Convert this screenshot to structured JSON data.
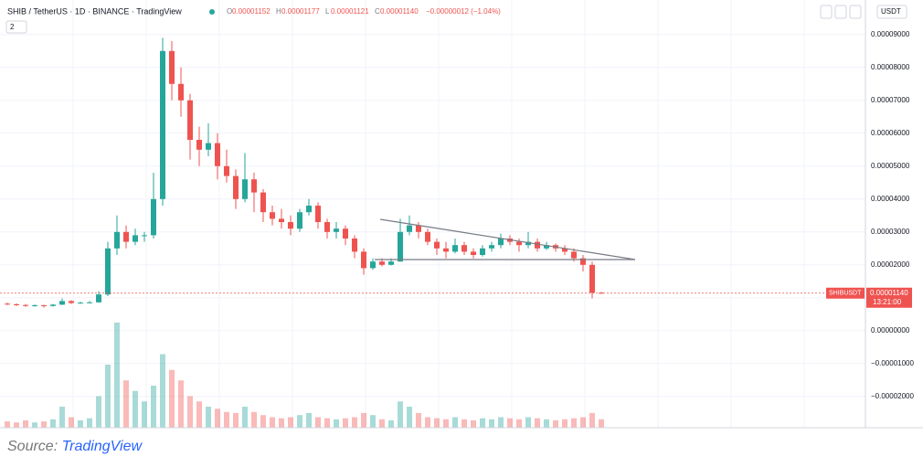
{
  "header": {
    "symbol": "SHIB / TetherUS · 1D · BINANCE · TradingView",
    "ohlc": [
      {
        "label": "O",
        "value": "0.00001152"
      },
      {
        "label": "H",
        "value": "0.00001177"
      },
      {
        "label": "L",
        "value": "0.00001121"
      },
      {
        "label": "C",
        "value": "0.00001140"
      }
    ],
    "change": "−0.00000012 (−1.04%)"
  },
  "controls": {
    "indicators": "2",
    "currency": "USDT"
  },
  "chart_data": {
    "type": "candlestick",
    "open": [
      8.2e-06,
      8e-06,
      7.8e-06,
      7.6e-06,
      7.7e-06,
      7.5e-06,
      7.9e-06,
      9e-06,
      8.4e-06,
      8.5e-06,
      8.6e-06,
      1.1e-05,
      2.5e-05,
      3e-05,
      2.7e-05,
      2.9e-05,
      2.9e-05,
      4e-05,
      8.5e-05,
      7.5e-05,
      7e-05,
      5.8e-05,
      5.5e-05,
      5.7e-05,
      5e-05,
      4.7e-05,
      4e-05,
      4.6e-05,
      4.2e-05,
      3.6e-05,
      3.4e-05,
      3.3e-05,
      3.1e-05,
      3.6e-05,
      3.8e-05,
      3.3e-05,
      3e-05,
      3.1e-05,
      2.8e-05,
      2.4e-05,
      1.9e-05,
      2.1e-05,
      2e-05,
      2.1e-05,
      3e-05,
      3.2e-05,
      3e-05,
      2.7e-05,
      2.5e-05,
      2.4e-05,
      2.6e-05,
      2.4e-05,
      2.3e-05,
      2.5e-05,
      2.6e-05,
      2.8e-05,
      2.7e-05,
      2.6e-05,
      2.7e-05,
      2.5e-05,
      2.6e-05,
      2.5e-05,
      2.4e-05,
      2.2e-05,
      2e-05,
      1.152e-05
    ],
    "high": [
      8.5e-06,
      8.3e-06,
      8.1e-06,
      8e-06,
      7.9e-06,
      8.1e-06,
      9.8e-06,
      9.3e-06,
      8.8e-06,
      9e-06,
      1.2e-05,
      2.7e-05,
      3.5e-05,
      3.2e-05,
      3.1e-05,
      3e-05,
      4.8e-05,
      8.9e-05,
      8.8e-05,
      8e-05,
      7.2e-05,
      6.2e-05,
      6.3e-05,
      6e-05,
      5.5e-05,
      4.9e-05,
      5.4e-05,
      4.8e-05,
      4.3e-05,
      3.8e-05,
      3.7e-05,
      3.5e-05,
      3.7e-05,
      4e-05,
      3.9e-05,
      3.4e-05,
      3.3e-05,
      3.2e-05,
      2.9e-05,
      2.5e-05,
      2.2e-05,
      2.2e-05,
      2.2e-05,
      3.4e-05,
      3.5e-05,
      3.3e-05,
      3.1e-05,
      2.8e-05,
      2.7e-05,
      2.8e-05,
      2.7e-05,
      2.5e-05,
      2.6e-05,
      2.7e-05,
      2.95e-05,
      2.9e-05,
      2.8e-05,
      3e-05,
      2.8e-05,
      2.7e-05,
      2.65e-05,
      2.6e-05,
      2.5e-05,
      2.3e-05,
      2.1e-05,
      1.177e-05
    ],
    "low": [
      7.8e-06,
      7.5e-06,
      7.2e-06,
      7.3e-06,
      7e-06,
      7.3e-06,
      7.8e-06,
      8.1e-06,
      8.2e-06,
      8.3e-06,
      8.5e-06,
      1.05e-05,
      2.3e-05,
      2.5e-05,
      2.6e-05,
      2.7e-05,
      2.8e-05,
      3.8e-05,
      7e-05,
      6.5e-05,
      5.2e-05,
      5e-05,
      5.3e-05,
      4.6e-05,
      4.5e-05,
      3.7e-05,
      3.9e-05,
      3.6e-05,
      3.3e-05,
      3.2e-05,
      3.1e-05,
      2.9e-05,
      3e-05,
      3.5e-05,
      3.1e-05,
      2.8e-05,
      2.8e-05,
      2.6e-05,
      2.2e-05,
      1.7e-05,
      1.85e-05,
      1.95e-05,
      1.98e-05,
      2.1e-05,
      2.9e-05,
      2.8e-05,
      2.6e-05,
      2.3e-05,
      2.2e-05,
      2.35e-05,
      2.3e-05,
      2.2e-05,
      2.25e-05,
      2.4e-05,
      2.5e-05,
      2.6e-05,
      2.4e-05,
      2.5e-05,
      2.4e-05,
      2.45e-05,
      2.4e-05,
      2.3e-05,
      2.1e-05,
      1.8e-05,
      9.8e-06,
      1.121e-05
    ],
    "close": [
      8e-06,
      7.8e-06,
      7.6e-06,
      7.7e-06,
      7.5e-06,
      7.9e-06,
      9e-06,
      8.4e-06,
      8.5e-06,
      8.6e-06,
      1.1e-05,
      2.5e-05,
      3e-05,
      2.7e-05,
      2.9e-05,
      2.9e-05,
      4e-05,
      8.5e-05,
      7.5e-05,
      7e-05,
      5.8e-05,
      5.5e-05,
      5.7e-05,
      5e-05,
      4.7e-05,
      4e-05,
      4.6e-05,
      4.2e-05,
      3.6e-05,
      3.4e-05,
      3.3e-05,
      3.1e-05,
      3.6e-05,
      3.8e-05,
      3.3e-05,
      3e-05,
      3.1e-05,
      2.8e-05,
      2.4e-05,
      1.9e-05,
      2.1e-05,
      2e-05,
      2.1e-05,
      3e-05,
      3.2e-05,
      3e-05,
      2.7e-05,
      2.5e-05,
      2.4e-05,
      2.6e-05,
      2.4e-05,
      2.3e-05,
      2.5e-05,
      2.6e-05,
      2.8e-05,
      2.7e-05,
      2.6e-05,
      2.7e-05,
      2.5e-05,
      2.6e-05,
      2.5e-05,
      2.4e-05,
      2.2e-05,
      2e-05,
      1.152e-05,
      1.14e-05
    ],
    "volume": [
      6,
      5,
      7,
      5,
      6,
      8,
      20,
      10,
      7,
      9,
      30,
      60,
      100,
      45,
      35,
      25,
      40,
      70,
      55,
      45,
      30,
      25,
      20,
      18,
      15,
      14,
      20,
      15,
      12,
      10,
      9,
      10,
      12,
      14,
      10,
      9,
      8,
      9,
      10,
      14,
      12,
      8,
      7,
      25,
      20,
      14,
      10,
      9,
      8,
      10,
      8,
      7,
      9,
      8,
      10,
      9,
      8,
      10,
      9,
      8,
      7,
      8,
      9,
      10,
      14,
      8
    ],
    "volume_lim": [
      0,
      100
    ],
    "ylim": [
      -2.95e-05,
      0.0001005
    ],
    "yticks": [
      {
        "value": -2e-05,
        "label": "−0.00002000"
      },
      {
        "value": -1e-05,
        "label": "−0.00001000"
      },
      {
        "value": 0,
        "label": "0.00000000"
      },
      {
        "value": 1e-05,
        "label": "0.00001000"
      },
      {
        "value": 2e-05,
        "label": "0.00002000"
      },
      {
        "value": 3e-05,
        "label": "0.00003000"
      },
      {
        "value": 4e-05,
        "label": "0.00004000"
      },
      {
        "value": 5e-05,
        "label": "0.00005000"
      },
      {
        "value": 6e-05,
        "label": "0.00006000"
      },
      {
        "value": 7e-05,
        "label": "0.00007000"
      },
      {
        "value": 8e-05,
        "label": "0.00008000"
      },
      {
        "value": 9e-05,
        "label": "0.00009000"
      }
    ],
    "grid": true,
    "up_color": "#26a69a",
    "down_color": "#ef5350"
  },
  "price_label": {
    "symbol": "SHIBUSDT",
    "price": "0.00001140",
    "countdown": "13:21:00"
  },
  "caption": {
    "prefix": "Source:",
    "link": "TradingView"
  }
}
